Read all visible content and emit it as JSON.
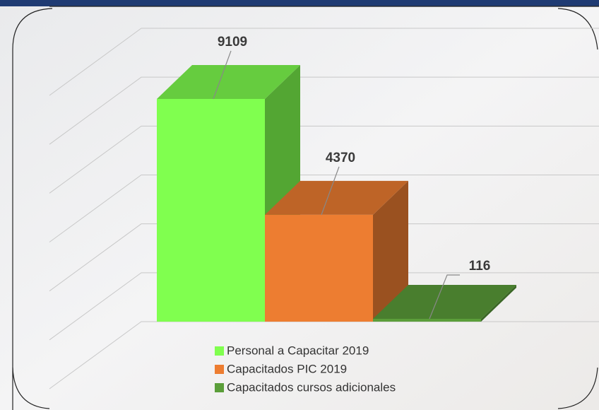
{
  "chart_data": {
    "type": "bar3d",
    "categories": [
      "Personal a Capacitar 2019",
      "Capacitados PIC 2019",
      "Capacitados cursos adicionales"
    ],
    "values": [
      9109,
      4370,
      116
    ],
    "colors": [
      "#80ff4f",
      "#ed7d31",
      "#5b9e3a"
    ],
    "ylim": [
      0,
      12000
    ],
    "yticks": [
      0,
      2000,
      4000,
      6000,
      8000,
      10000,
      12000
    ],
    "grid": true,
    "legend": "bottom"
  }
}
